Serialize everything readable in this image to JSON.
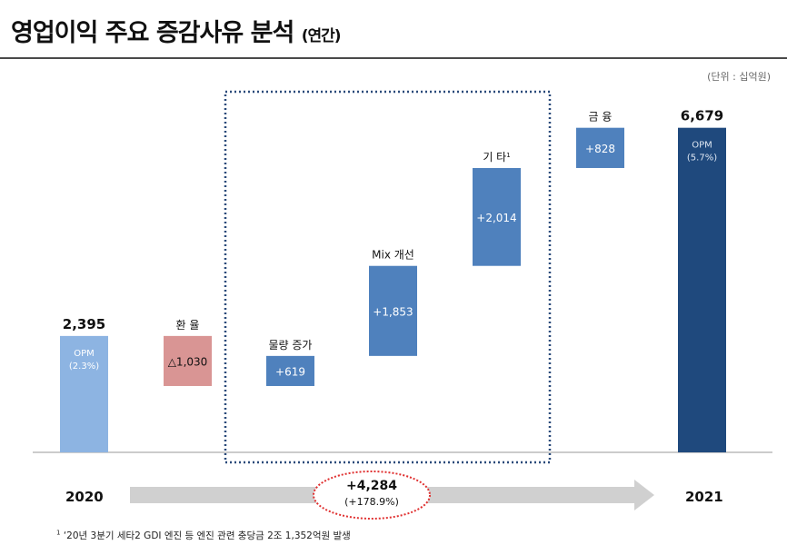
{
  "page": {
    "title": "영업이익 주요 증감사유 분석",
    "title_suffix": "(연간)",
    "unit": "(단위 : 십억원)",
    "year_start": "2020",
    "year_end": "2021",
    "total_change": "+4,284",
    "total_change_pct": "(+178.9%)",
    "footnote_mark": "1",
    "footnote": "‘20년 3분기 세타2 GDI 엔진 등 엔진 관련 충당금 2조 1,352억원 발생"
  },
  "chart_data": {
    "type": "waterfall",
    "bars": [
      {
        "label": "2,395",
        "kind": "total",
        "start": 0,
        "end": 2395,
        "inner": "OPM",
        "inner2": "(2.3%)",
        "color": "#8db4e2"
      },
      {
        "label": "환 율",
        "kind": "delta",
        "start": 2395,
        "end": 1365,
        "inner": "△1,030",
        "color": "#d99594"
      },
      {
        "label": "물량 증가",
        "kind": "delta",
        "start": 1365,
        "end": 1984,
        "inner": "+619",
        "color": "#4f81bd"
      },
      {
        "label": "Mix 개선",
        "kind": "delta",
        "start": 1984,
        "end": 3837,
        "inner": "+1,853",
        "color": "#4f81bd"
      },
      {
        "label": "기 타",
        "label_sup": "1",
        "kind": "delta",
        "start": 3837,
        "end": 5851,
        "inner": "+2,014",
        "color": "#4f81bd"
      },
      {
        "label": "금 융",
        "kind": "delta",
        "start": 5851,
        "end": 6679,
        "inner": "+828",
        "color": "#4f81bd"
      },
      {
        "label": "6,679",
        "kind": "total",
        "start": 0,
        "end": 6679,
        "inner": "OPM",
        "inner2": "(5.7%)",
        "color": "#1f497d"
      }
    ],
    "highlight_group": [
      2,
      4
    ],
    "colors": {
      "arrow": "#d0d0d0",
      "ellipse": "#e03030",
      "dotted_box": "#2a4a7a"
    }
  }
}
